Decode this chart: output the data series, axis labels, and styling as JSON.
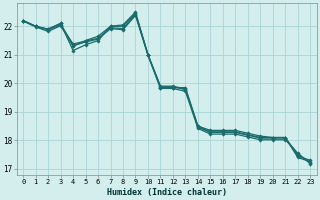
{
  "xlabel": "Humidex (Indice chaleur)",
  "bg_color": "#d4eeee",
  "grid_color": "#aad4d4",
  "line_color": "#1a6b6b",
  "xlim": [
    -0.5,
    23.5
  ],
  "ylim": [
    16.8,
    22.8
  ],
  "yticks": [
    17,
    18,
    19,
    20,
    21,
    22
  ],
  "xticks": [
    0,
    1,
    2,
    3,
    4,
    5,
    6,
    7,
    8,
    9,
    10,
    11,
    12,
    13,
    14,
    15,
    16,
    17,
    18,
    19,
    20,
    21,
    22,
    23
  ],
  "series": [
    [
      22.2,
      22.0,
      21.9,
      22.1,
      21.15,
      21.35,
      21.5,
      22.0,
      22.05,
      22.5,
      21.0,
      19.85,
      19.85,
      19.85,
      18.5,
      18.35,
      18.35,
      18.35,
      18.25,
      18.15,
      18.1,
      18.1,
      17.45,
      17.3
    ],
    [
      22.2,
      22.0,
      21.9,
      22.1,
      21.3,
      21.5,
      21.65,
      22.0,
      22.0,
      22.45,
      21.0,
      19.9,
      19.9,
      19.8,
      18.5,
      18.3,
      18.3,
      18.3,
      18.2,
      18.1,
      18.1,
      18.1,
      17.4,
      17.25
    ],
    [
      22.2,
      22.0,
      21.88,
      22.05,
      21.38,
      21.48,
      21.58,
      21.95,
      21.92,
      22.42,
      21.0,
      19.88,
      19.88,
      19.78,
      18.46,
      18.28,
      18.28,
      18.28,
      18.18,
      18.08,
      18.08,
      18.08,
      17.52,
      17.22
    ],
    [
      22.18,
      21.98,
      21.82,
      22.02,
      21.32,
      21.45,
      21.55,
      21.92,
      21.88,
      22.38,
      20.98,
      19.82,
      19.82,
      19.72,
      18.42,
      18.22,
      18.22,
      18.22,
      18.12,
      18.02,
      18.02,
      18.02,
      17.55,
      17.18
    ]
  ]
}
